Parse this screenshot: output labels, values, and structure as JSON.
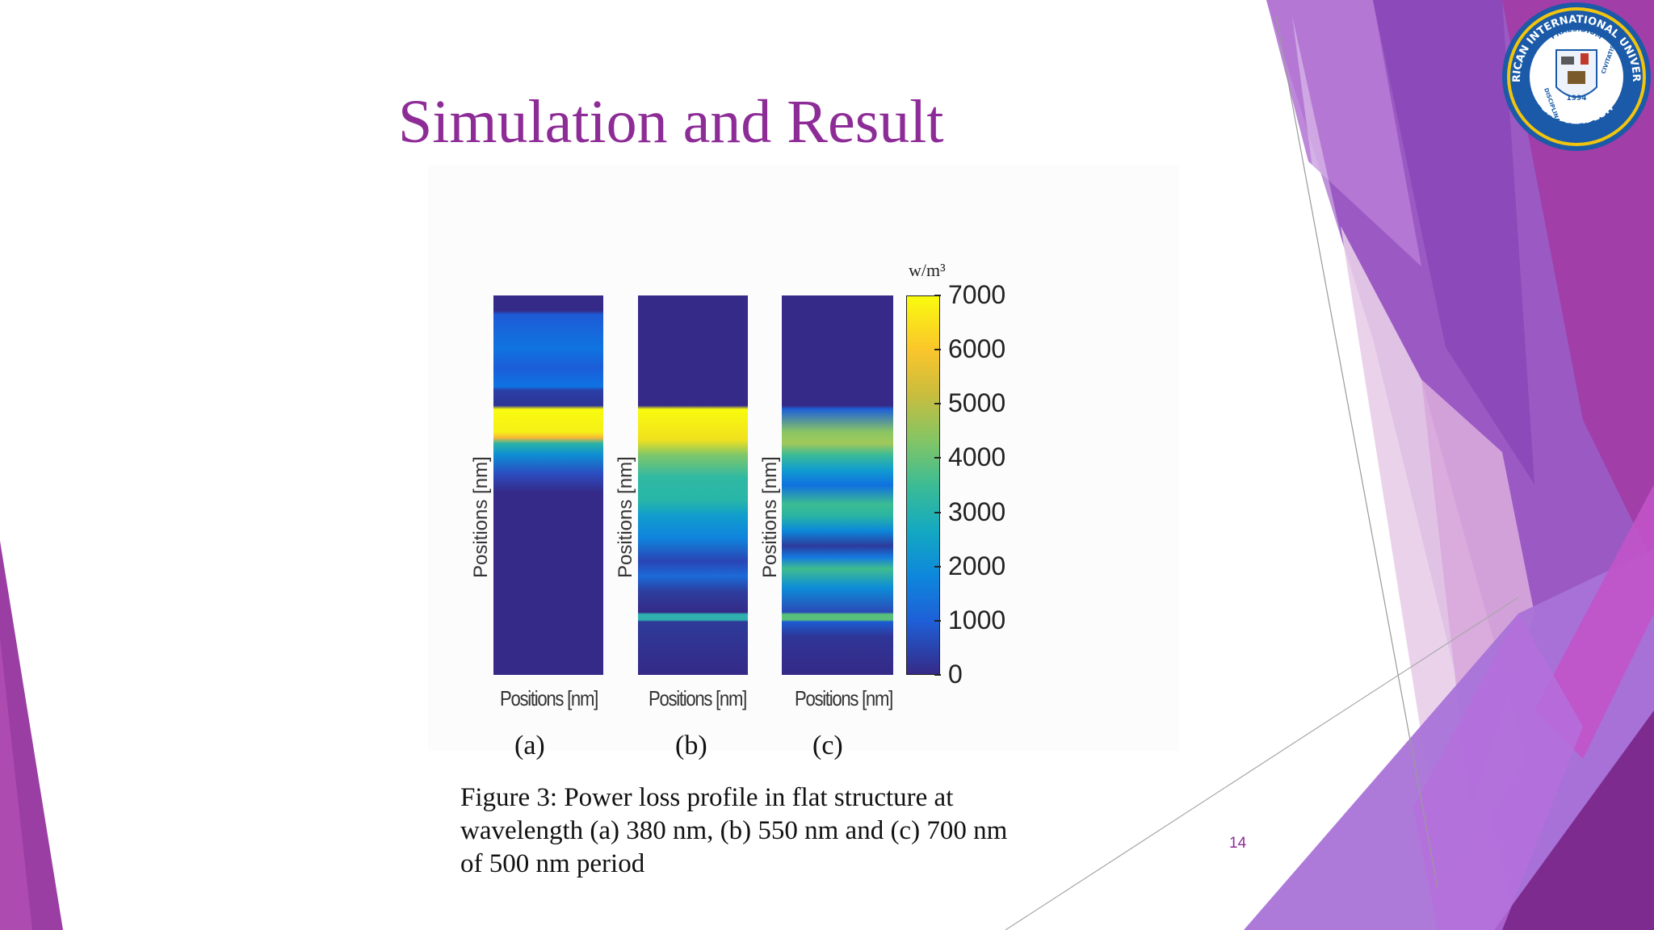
{
  "slide": {
    "title": "Simulation and Result",
    "page_number": "14",
    "accent_color": "#8e2c97"
  },
  "figure": {
    "unit_label": "w/m³",
    "colorbar_ticks": [
      "7000",
      "6000",
      "5000",
      "4000",
      "3000",
      "2000",
      "1000",
      "0"
    ],
    "colormap": "parula",
    "y_axis_label": "Positions [nm]",
    "x_axis_label": "Positions [nm]",
    "panels": [
      {
        "letter": "(a)"
      },
      {
        "letter": "(b)"
      },
      {
        "letter": "(c)"
      }
    ],
    "caption": "Figure 3: Power loss profile in flat structure at wavelength (a) 380 nm, (b) 550 nm and (c) 700 nm of 500 nm period"
  },
  "logo": {
    "top_text": "AMERICAN INTERNATIONAL UNIVERSITY",
    "motto_top": "PRAESIDIUM",
    "motto_left": "DISCIPLINA",
    "motto_right": "CIVITATIS",
    "year": "1994",
    "bottom_text": "BANGLADESH",
    "colors": {
      "ring": "#1a5aa8",
      "inner": "#ffffff",
      "accent": "#e8c21a"
    }
  }
}
